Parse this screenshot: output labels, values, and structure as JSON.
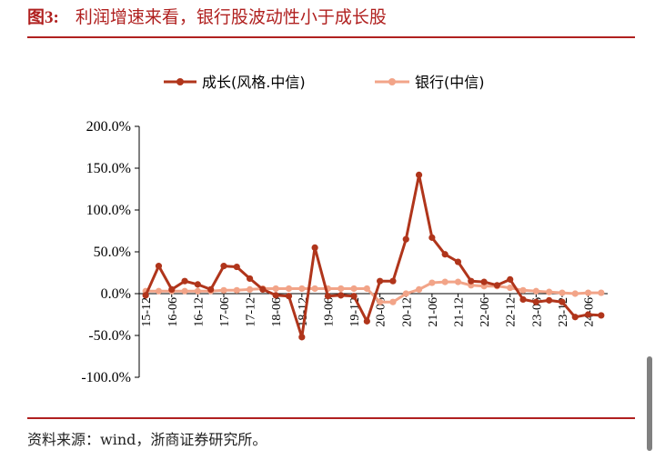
{
  "figure": {
    "number": "图3:",
    "title": "利润增速来看，银行股波动性小于成长股",
    "source": "资料来源：wind，浙商证券研究所。"
  },
  "chart_data": {
    "type": "line",
    "title": "",
    "xlabel": "",
    "ylabel": "",
    "ylim": [
      -100,
      200
    ],
    "y_ticks": [
      "200.0%",
      "150.0%",
      "100.0%",
      "50.0%",
      "0.0%",
      "-50.0%",
      "-100.0%"
    ],
    "y_tick_values": [
      200,
      150,
      100,
      50,
      0,
      -50,
      -100
    ],
    "x": [
      "15-12",
      "16-03",
      "16-06",
      "16-09",
      "16-12",
      "17-03",
      "17-06",
      "17-09",
      "17-12",
      "18-03",
      "18-06",
      "18-09",
      "18-12",
      "19-03",
      "19-06",
      "19-09",
      "19-12",
      "20-03",
      "20-06",
      "20-09",
      "20-12",
      "21-03",
      "21-06",
      "21-09",
      "21-12",
      "22-03",
      "22-06",
      "22-09",
      "22-12",
      "23-03",
      "23-06",
      "23-09",
      "23-12",
      "24-03",
      "24-06",
      "24-09"
    ],
    "x_tick_labels": [
      "15-12",
      "16-06",
      "16-12",
      "17-06",
      "17-12",
      "18-06",
      "18-12",
      "19-06",
      "19-12",
      "20-06",
      "20-12",
      "21-06",
      "21-12",
      "22-06",
      "22-12",
      "23-06",
      "23-12",
      "24-06"
    ],
    "legend_position": "top",
    "series": [
      {
        "name": "成长(风格.中信)",
        "color": "#b0351b",
        "values": [
          -2,
          33,
          5,
          15,
          11,
          5,
          33,
          32,
          18,
          5,
          -2,
          -3,
          -52,
          55,
          -3,
          -2,
          -3,
          -33,
          15,
          15,
          65,
          142,
          67,
          47,
          38,
          15,
          14,
          10,
          17,
          -7,
          -10,
          -8,
          -10,
          -28,
          -25,
          -26
        ]
      },
      {
        "name": "银行(中信)",
        "color": "#f2a488",
        "values": [
          3,
          3,
          3,
          3,
          3,
          3,
          4,
          4,
          5,
          6,
          6,
          6,
          6,
          6,
          6,
          6,
          6,
          6,
          -10,
          -10,
          0,
          5,
          13,
          14,
          14,
          10,
          9,
          9,
          7,
          4,
          3,
          2,
          1,
          0,
          1,
          1
        ]
      }
    ]
  }
}
